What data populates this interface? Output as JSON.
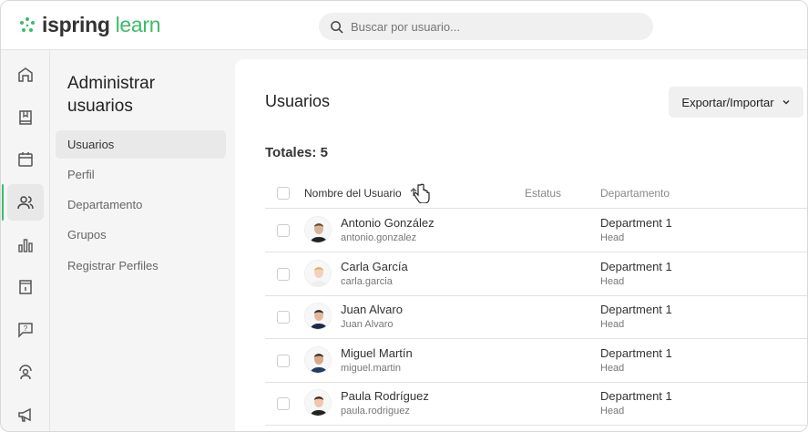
{
  "header": {
    "logo_primary": "ispring",
    "logo_secondary": "learn",
    "search_placeholder": "Buscar por usuario...",
    "brand_color": "#3dbb6b"
  },
  "rail": [
    "home-icon",
    "book-icon",
    "calendar-icon",
    "users-icon",
    "chart-icon",
    "info-icon",
    "question-icon",
    "support-icon",
    "megaphone-icon"
  ],
  "subnav": {
    "title": "Administrar usuarios",
    "items": [
      {
        "label": "Usuarios",
        "active": true
      },
      {
        "label": "Perfil"
      },
      {
        "label": "Departamento"
      },
      {
        "label": "Grupos"
      },
      {
        "label": "Registrar Perfiles"
      }
    ]
  },
  "main": {
    "title": "Usuarios",
    "export_label": "Exportar/Importar",
    "totals": "Totales: 5",
    "columns": {
      "name": "Nombre del Usuario",
      "status": "Estatus",
      "department": "Departamento"
    },
    "rows": [
      {
        "name": "Antonio González",
        "login": "antonio.gonzalez",
        "department": "Department 1",
        "role": "Head"
      },
      {
        "name": "Carla García",
        "login": "carla.garcia",
        "department": "Department 1",
        "role": "Head"
      },
      {
        "name": "Juan Alvaro",
        "login": "Juan Alvaro",
        "department": "Department 1",
        "role": "Head"
      },
      {
        "name": "Miguel Martín",
        "login": "miguel.martin",
        "department": "Department 1",
        "role": "Head"
      },
      {
        "name": "Paula Rodríguez",
        "login": "paula.rodriguez",
        "department": "Department 1",
        "role": "Head"
      }
    ]
  }
}
